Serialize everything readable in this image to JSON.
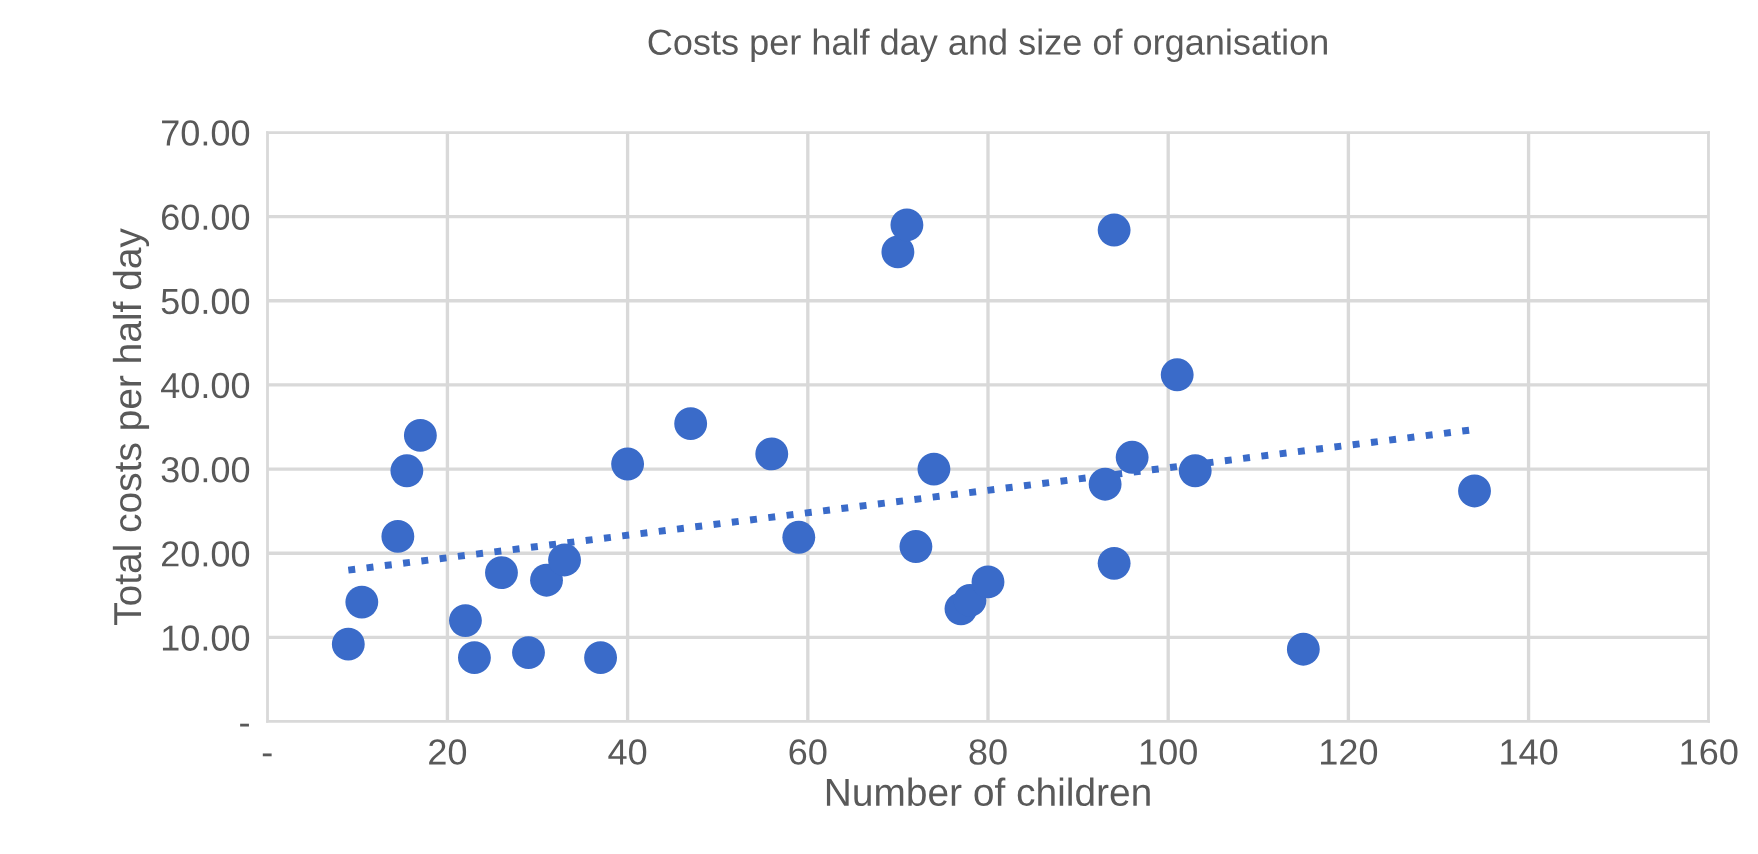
{
  "chart_data": {
    "type": "scatter",
    "title": "Costs per half day and size of organisation",
    "xlabel": "Number of children",
    "ylabel": "Total costs per half day",
    "series": [
      {
        "color": "#3a6bc9",
        "marker": "circle",
        "x": [
          9,
          10.5,
          14.5,
          15.5,
          17,
          22,
          23,
          26,
          29,
          31,
          33,
          37,
          40,
          47,
          56,
          59,
          70,
          71,
          72,
          74,
          77,
          78,
          80,
          93,
          94,
          94,
          96,
          101,
          103,
          115,
          134
        ],
        "values": [
          9.2,
          14.2,
          22,
          29.8,
          34,
          12,
          7.6,
          17.7,
          8.2,
          16.8,
          19.2,
          7.6,
          30.6,
          35.4,
          31.8,
          21.9,
          55.8,
          59,
          20.8,
          30,
          13.4,
          14.4,
          16.6,
          28.2,
          18.8,
          58.4,
          31.4,
          41.2,
          29.8,
          8.6,
          27.4
        ]
      },
      {
        "type": "line",
        "color": "#3a6bc9",
        "line_style": "dotted",
        "x": [
          9,
          134
        ],
        "values": [
          18,
          34.7
        ]
      }
    ],
    "xlim": [
      0,
      160
    ],
    "xticks": [
      {
        "value": 0,
        "label": "-"
      },
      20,
      40,
      60,
      80,
      100,
      120,
      140,
      160
    ],
    "ylim": [
      0,
      70
    ],
    "yticks": [
      {
        "value": 0,
        "label": "-"
      },
      {
        "value": 10,
        "label": "10.00"
      },
      {
        "value": 20,
        "label": "20.00"
      },
      {
        "value": 30,
        "label": "30.00"
      },
      {
        "value": 40,
        "label": "40.00"
      },
      {
        "value": 50,
        "label": "50.00"
      },
      {
        "value": 60,
        "label": "60.00"
      },
      {
        "value": 70,
        "label": "70.00"
      }
    ],
    "grid": true
  }
}
